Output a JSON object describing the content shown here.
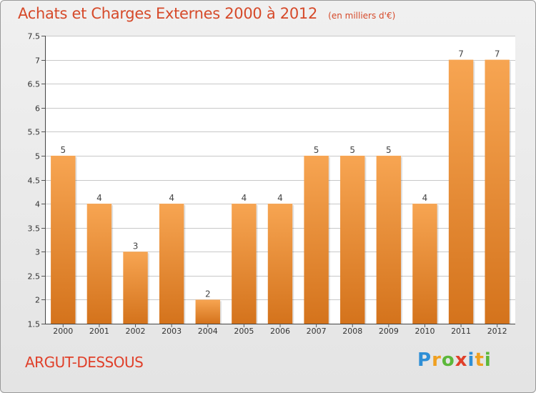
{
  "header": {
    "title": "Achats et Charges Externes 2000 à 2012",
    "subtitle": "(en milliers d'€)"
  },
  "footer": {
    "place": "ARGUT-DESSOUS",
    "logo_text": "Proxiti"
  },
  "colors": {
    "bar_top": "#f7a552",
    "bar_bottom": "#d4731c",
    "title": "#d64a2a",
    "grid": "#c8c8c8"
  },
  "chart_data": {
    "type": "bar",
    "categories": [
      "2000",
      "2001",
      "2002",
      "2003",
      "2004",
      "2005",
      "2006",
      "2007",
      "2008",
      "2009",
      "2010",
      "2011",
      "2012"
    ],
    "values": [
      5,
      4,
      3,
      4,
      2,
      4,
      4,
      5,
      5,
      5,
      4,
      7,
      7
    ],
    "data_labels": [
      "5",
      "4",
      "3",
      "4",
      "2",
      "4",
      "4",
      "5",
      "5",
      "5",
      "4",
      "7",
      "7"
    ],
    "title": "Achats et Charges Externes 2000 à 2012",
    "subtitle": "(en milliers d'€)",
    "xlabel": "",
    "ylabel": "",
    "ylim": [
      1.5,
      7.5
    ],
    "yticks": [
      1.5,
      2,
      2.5,
      3,
      3.5,
      4,
      4.5,
      5,
      5.5,
      6,
      6.5,
      7,
      7.5
    ],
    "ytick_labels": [
      "1.5",
      "2",
      "2.5",
      "3",
      "3.5",
      "4",
      "4.5",
      "5",
      "5.5",
      "6",
      "6.5",
      "7",
      "7.5"
    ],
    "grid": true,
    "legend": "none"
  }
}
